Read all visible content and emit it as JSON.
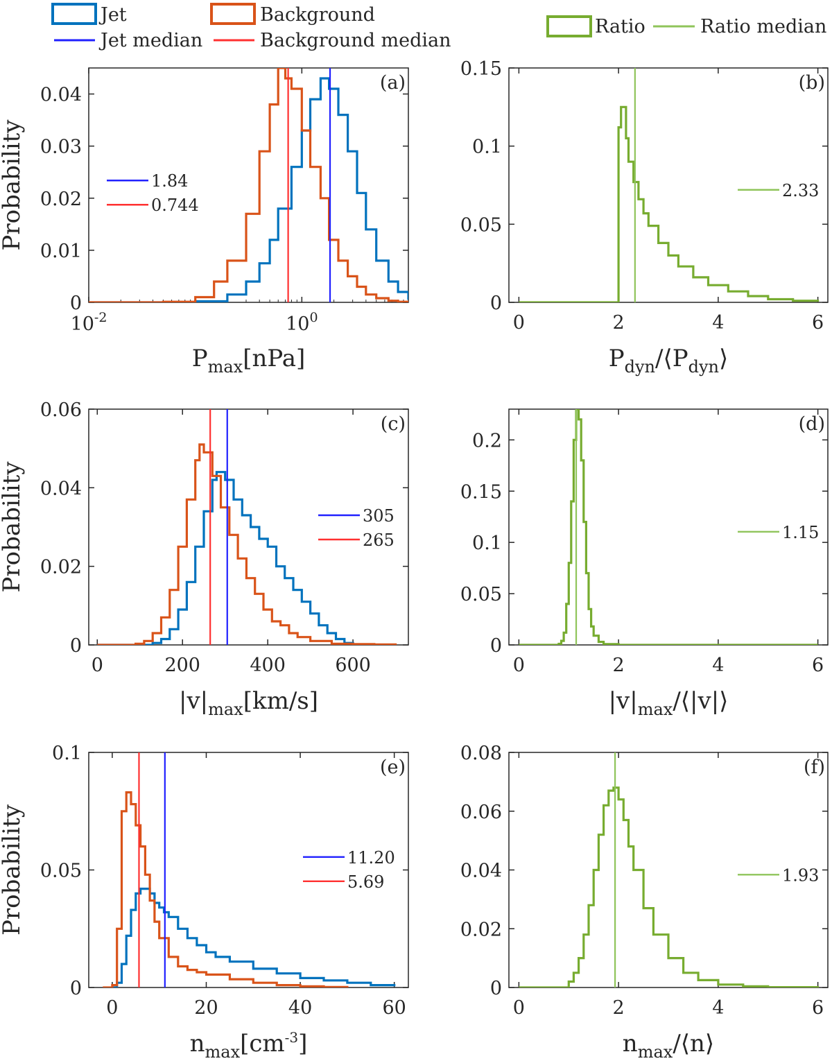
{
  "colors": {
    "jet": "#0072BD",
    "background": "#D95319",
    "jet_median": "#2020FF",
    "background_median": "#FF3030",
    "ratio": "#77AC30",
    "ratio_median": "#8FC45A"
  },
  "legend": {
    "jet": "Jet",
    "background": "Background",
    "jet_median": "Jet median",
    "background_median": "Background median",
    "ratio": "Ratio",
    "ratio_median": "Ratio median"
  },
  "chart_data": [
    {
      "id": "a",
      "tag": "(a)",
      "type": "histogram",
      "xlabel": "P_max[nPa]",
      "ylabel": "Probability",
      "xscale": "log",
      "xlim": [
        0.01,
        10
      ],
      "ylim": [
        0,
        0.045
      ],
      "xticks": [
        0.01,
        1
      ],
      "xtick_labels": [
        "10^-2",
        "10^0"
      ],
      "yticks": [
        0,
        0.01,
        0.02,
        0.03,
        0.04
      ],
      "ytick_labels": [
        "0",
        "0.01",
        "0.02",
        "0.03",
        "0.04"
      ],
      "series": [
        {
          "name": "Jet",
          "role": "jet",
          "x": [
            0.01,
            0.05,
            0.1,
            0.2,
            0.3,
            0.4,
            0.5,
            0.6,
            0.8,
            1.0,
            1.2,
            1.5,
            1.8,
            2.2,
            2.7,
            3.3,
            4.0,
            5.0,
            6.5,
            8.0,
            10.0
          ],
          "y": [
            0,
            0,
            0.0002,
            0.0015,
            0.004,
            0.0075,
            0.012,
            0.018,
            0.026,
            0.033,
            0.039,
            0.043,
            0.041,
            0.036,
            0.029,
            0.021,
            0.014,
            0.008,
            0.004,
            0.002,
            0.0005
          ]
        },
        {
          "name": "Background",
          "role": "background",
          "x": [
            0.01,
            0.05,
            0.1,
            0.15,
            0.2,
            0.3,
            0.4,
            0.5,
            0.6,
            0.7,
            0.8,
            1.0,
            1.2,
            1.5,
            1.8,
            2.2,
            2.7,
            3.3,
            4.0,
            5.0,
            6.5,
            8.0,
            10.0
          ],
          "y": [
            0,
            0.0001,
            0.001,
            0.004,
            0.008,
            0.017,
            0.029,
            0.038,
            0.045,
            0.043,
            0.041,
            0.033,
            0.026,
            0.02,
            0.012,
            0.008,
            0.005,
            0.003,
            0.0015,
            0.0008,
            0.0003,
            0.0001,
            0
          ]
        }
      ],
      "medians": [
        {
          "role": "jet_median",
          "value": 1.84,
          "label": "1.84"
        },
        {
          "role": "background_median",
          "value": 0.744,
          "label": "0.744"
        }
      ],
      "inset_legend": "left"
    },
    {
      "id": "b",
      "tag": "(b)",
      "type": "histogram",
      "xlabel": "P_dyn/⟨P_dyn⟩",
      "ylabel": "",
      "xscale": "linear",
      "xlim": [
        -0.2,
        6.2
      ],
      "ylim": [
        0,
        0.15
      ],
      "xticks": [
        0,
        2,
        4,
        6
      ],
      "xtick_labels": [
        "0",
        "2",
        "4",
        "6"
      ],
      "yticks": [
        0,
        0.05,
        0.1,
        0.15
      ],
      "ytick_labels": [
        "0",
        "0.05",
        "0.1",
        "0.15"
      ],
      "series": [
        {
          "name": "Ratio",
          "role": "ratio",
          "x": [
            0,
            1.98,
            2.0,
            2.05,
            2.1,
            2.15,
            2.2,
            2.3,
            2.4,
            2.5,
            2.6,
            2.8,
            3.0,
            3.2,
            3.5,
            3.8,
            4.2,
            4.6,
            5.0,
            5.5,
            6.0
          ],
          "y": [
            0,
            0,
            0.112,
            0.125,
            0.125,
            0.105,
            0.09,
            0.077,
            0.066,
            0.057,
            0.049,
            0.038,
            0.03,
            0.023,
            0.016,
            0.011,
            0.007,
            0.004,
            0.002,
            0.001,
            0.0005
          ]
        }
      ],
      "medians": [
        {
          "role": "ratio_median",
          "value": 2.33,
          "label": "2.33"
        }
      ],
      "inset_legend": "right"
    },
    {
      "id": "c",
      "tag": "(c)",
      "type": "histogram",
      "xlabel": "|v|_max[km/s]",
      "ylabel": "Probability",
      "xscale": "linear",
      "xlim": [
        -20,
        730
      ],
      "ylim": [
        0,
        0.06
      ],
      "xticks": [
        0,
        200,
        400,
        600
      ],
      "xtick_labels": [
        "0",
        "200",
        "400",
        "600"
      ],
      "yticks": [
        0,
        0.02,
        0.04,
        0.06
      ],
      "ytick_labels": [
        "0",
        "0.02",
        "0.04",
        "0.06"
      ],
      "series": [
        {
          "name": "Jet",
          "role": "jet",
          "x": [
            0,
            100,
            130,
            150,
            170,
            190,
            210,
            230,
            250,
            270,
            280,
            300,
            320,
            340,
            360,
            380,
            400,
            420,
            440,
            460,
            480,
            500,
            520,
            540,
            560,
            580,
            600
          ],
          "y": [
            0,
            0,
            0.0005,
            0.0015,
            0.004,
            0.009,
            0.016,
            0.025,
            0.034,
            0.042,
            0.044,
            0.042,
            0.037,
            0.033,
            0.03,
            0.027,
            0.025,
            0.02,
            0.017,
            0.014,
            0.011,
            0.008,
            0.005,
            0.003,
            0.0015,
            0.0005,
            0
          ]
        },
        {
          "name": "Background",
          "role": "background",
          "x": [
            0,
            90,
            110,
            130,
            150,
            170,
            190,
            210,
            230,
            240,
            250,
            270,
            290,
            310,
            330,
            350,
            370,
            390,
            410,
            430,
            450,
            470,
            500,
            550,
            600,
            650,
            700
          ],
          "y": [
            0,
            0.0003,
            0.001,
            0.003,
            0.007,
            0.014,
            0.025,
            0.037,
            0.047,
            0.051,
            0.049,
            0.043,
            0.035,
            0.028,
            0.022,
            0.017,
            0.013,
            0.009,
            0.006,
            0.005,
            0.003,
            0.002,
            0.001,
            0.0003,
            0.0002,
            0.0001,
            0
          ]
        }
      ],
      "medians": [
        {
          "role": "jet_median",
          "value": 305,
          "label": "305"
        },
        {
          "role": "background_median",
          "value": 265,
          "label": "265"
        }
      ],
      "inset_legend": "right"
    },
    {
      "id": "d",
      "tag": "(d)",
      "type": "histogram",
      "xlabel": "|v|_max/⟨|v|⟩",
      "ylabel": "",
      "xscale": "linear",
      "xlim": [
        -0.2,
        6.2
      ],
      "ylim": [
        0,
        0.23
      ],
      "xticks": [
        0,
        2,
        4,
        6
      ],
      "xtick_labels": [
        "0",
        "2",
        "4",
        "6"
      ],
      "yticks": [
        0,
        0.05,
        0.1,
        0.15,
        0.2
      ],
      "ytick_labels": [
        "0",
        "0.05",
        "0.1",
        "0.15",
        "0.2"
      ],
      "series": [
        {
          "name": "Ratio",
          "role": "ratio",
          "x": [
            0,
            0.8,
            0.85,
            0.9,
            0.95,
            1.0,
            1.05,
            1.1,
            1.15,
            1.2,
            1.25,
            1.3,
            1.35,
            1.4,
            1.45,
            1.5,
            1.6,
            1.7,
            2.0,
            6.0
          ],
          "y": [
            0,
            0.001,
            0.004,
            0.012,
            0.04,
            0.08,
            0.14,
            0.2,
            0.23,
            0.22,
            0.18,
            0.12,
            0.07,
            0.035,
            0.018,
            0.009,
            0.003,
            0.0008,
            0,
            0
          ]
        }
      ],
      "medians": [
        {
          "role": "ratio_median",
          "value": 1.15,
          "label": "1.15"
        }
      ],
      "inset_legend": "right"
    },
    {
      "id": "e",
      "tag": "(e)",
      "type": "histogram",
      "xlabel": "n_max[cm^-3]",
      "ylabel": "Probability",
      "xscale": "linear",
      "xlim": [
        -5,
        63
      ],
      "ylim": [
        0,
        0.1
      ],
      "xticks": [
        0,
        20,
        40,
        60
      ],
      "xtick_labels": [
        "0",
        "20",
        "40",
        "60"
      ],
      "yticks": [
        0,
        0.05,
        0.1
      ],
      "ytick_labels": [
        "0",
        "0.05",
        "0.1"
      ],
      "series": [
        {
          "name": "Jet",
          "role": "jet",
          "x": [
            0,
            1,
            2,
            3,
            4,
            5,
            6,
            7,
            8,
            9,
            10,
            11,
            12,
            14,
            16,
            18,
            20,
            22,
            25,
            30,
            35,
            40,
            45,
            50,
            55,
            60
          ],
          "y": [
            0,
            0.002,
            0.01,
            0.022,
            0.033,
            0.04,
            0.042,
            0.042,
            0.04,
            0.036,
            0.034,
            0.032,
            0.03,
            0.025,
            0.021,
            0.018,
            0.015,
            0.013,
            0.011,
            0.008,
            0.006,
            0.004,
            0.003,
            0.002,
            0.001,
            0.0005
          ]
        },
        {
          "name": "Background",
          "role": "background",
          "x": [
            -2,
            0,
            1,
            2,
            3,
            4,
            5,
            6,
            7,
            8,
            9,
            10,
            12,
            14,
            16,
            18,
            20,
            25,
            30,
            35,
            40,
            45,
            50
          ],
          "y": [
            0,
            0.001,
            0.025,
            0.075,
            0.083,
            0.078,
            0.069,
            0.06,
            0.048,
            0.037,
            0.028,
            0.021,
            0.013,
            0.009,
            0.0075,
            0.0065,
            0.0055,
            0.0035,
            0.002,
            0.001,
            0.0005,
            0.0002,
            0
          ]
        }
      ],
      "medians": [
        {
          "role": "jet_median",
          "value": 11.2,
          "label": "11.20"
        },
        {
          "role": "background_median",
          "value": 5.69,
          "label": "5.69"
        }
      ],
      "inset_legend": "right"
    },
    {
      "id": "f",
      "tag": "(f)",
      "type": "histogram",
      "xlabel": "n_max/⟨n⟩",
      "ylabel": "",
      "xscale": "linear",
      "xlim": [
        -0.2,
        6.2
      ],
      "ylim": [
        0,
        0.08
      ],
      "xticks": [
        0,
        2,
        4,
        6
      ],
      "xtick_labels": [
        "0",
        "2",
        "4",
        "6"
      ],
      "yticks": [
        0,
        0.02,
        0.04,
        0.06,
        0.08
      ],
      "ytick_labels": [
        "0",
        "0.02",
        "0.04",
        "0.06",
        "0.08"
      ],
      "series": [
        {
          "name": "Ratio",
          "role": "ratio",
          "x": [
            0,
            0.8,
            1.0,
            1.1,
            1.2,
            1.3,
            1.4,
            1.5,
            1.6,
            1.7,
            1.8,
            1.9,
            2.0,
            2.1,
            2.2,
            2.3,
            2.5,
            2.7,
            3.0,
            3.3,
            3.6,
            4.0,
            4.5,
            5.0,
            6.0
          ],
          "y": [
            0,
            0,
            0.002,
            0.005,
            0.01,
            0.018,
            0.028,
            0.04,
            0.052,
            0.062,
            0.067,
            0.068,
            0.064,
            0.057,
            0.048,
            0.04,
            0.027,
            0.018,
            0.01,
            0.005,
            0.0025,
            0.001,
            0.0004,
            0.0001,
            0
          ]
        }
      ],
      "medians": [
        {
          "role": "ratio_median",
          "value": 1.93,
          "label": "1.93"
        }
      ],
      "inset_legend": "right"
    }
  ]
}
